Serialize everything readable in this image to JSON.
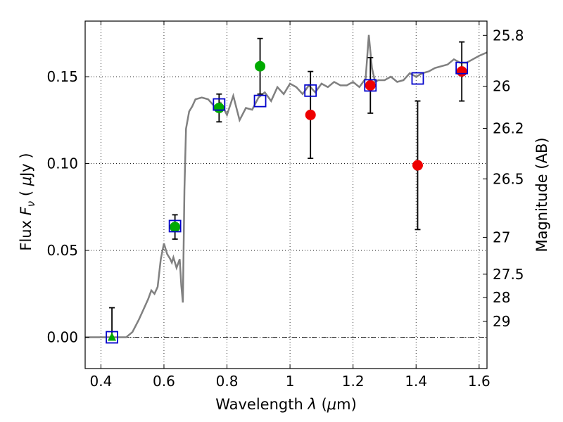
{
  "chart_data": {
    "type": "scatter",
    "xlabel": {
      "prefix": "Wavelength ",
      "symbol": "λ",
      "unit_open": " (",
      "unit_mu": "μ",
      "unit_rest": "m)"
    },
    "ylabel": {
      "prefix": "Flux ",
      "symbol": "F",
      "subscript": "ν",
      "unit_open": " ( ",
      "unit_mu": "μ",
      "unit_rest": "Jy )"
    },
    "y2label": "Magnitude (AB)",
    "xlim": [
      0.35,
      1.625
    ],
    "ylim": [
      -0.018,
      0.182
    ],
    "grid": true,
    "x_ticks": [
      {
        "value": 0.4,
        "label": "0.4"
      },
      {
        "value": 0.6,
        "label": "0.6"
      },
      {
        "value": 0.8,
        "label": "0.8"
      },
      {
        "value": 1.0,
        "label": "1"
      },
      {
        "value": 1.2,
        "label": "1.2"
      },
      {
        "value": 1.4,
        "label": "1.4"
      },
      {
        "value": 1.6,
        "label": "1.6"
      }
    ],
    "y_ticks": [
      {
        "value": 0.0,
        "label": "0.00"
      },
      {
        "value": 0.05,
        "label": "0.05"
      },
      {
        "value": 0.1,
        "label": "0.10"
      },
      {
        "value": 0.15,
        "label": "0.15"
      }
    ],
    "y2_ticks": [
      {
        "value": 25.8,
        "label": "25.8"
      },
      {
        "value": 26.0,
        "label": "26"
      },
      {
        "value": 26.2,
        "label": "26.2"
      },
      {
        "value": 26.5,
        "label": "26.5"
      },
      {
        "value": 27.0,
        "label": "27"
      },
      {
        "value": 27.5,
        "label": "27.5"
      },
      {
        "value": 28.0,
        "label": "28"
      },
      {
        "value": 29.0,
        "label": "29"
      }
    ],
    "model_spectrum": {
      "color": "#808080",
      "x": [
        0.35,
        0.48,
        0.5,
        0.52,
        0.53,
        0.54,
        0.55,
        0.56,
        0.57,
        0.58,
        0.59,
        0.6,
        0.61,
        0.62,
        0.625,
        0.63,
        0.64,
        0.65,
        0.655,
        0.66,
        0.665,
        0.67,
        0.68,
        0.69,
        0.7,
        0.72,
        0.74,
        0.76,
        0.78,
        0.8,
        0.82,
        0.84,
        0.86,
        0.88,
        0.9,
        0.92,
        0.94,
        0.96,
        0.98,
        1.0,
        1.02,
        1.04,
        1.06,
        1.08,
        1.1,
        1.12,
        1.14,
        1.16,
        1.18,
        1.2,
        1.22,
        1.24,
        1.25,
        1.26,
        1.27,
        1.28,
        1.3,
        1.32,
        1.34,
        1.36,
        1.38,
        1.4,
        1.42,
        1.44,
        1.46,
        1.48,
        1.5,
        1.52,
        1.54,
        1.56,
        1.58,
        1.6,
        1.625
      ],
      "y": [
        0.0,
        0.0,
        0.003,
        0.01,
        0.014,
        0.018,
        0.022,
        0.027,
        0.025,
        0.029,
        0.045,
        0.054,
        0.048,
        0.045,
        0.043,
        0.046,
        0.04,
        0.045,
        0.03,
        0.02,
        0.085,
        0.12,
        0.13,
        0.133,
        0.137,
        0.138,
        0.137,
        0.133,
        0.135,
        0.128,
        0.139,
        0.125,
        0.132,
        0.131,
        0.138,
        0.141,
        0.136,
        0.144,
        0.14,
        0.146,
        0.144,
        0.14,
        0.145,
        0.141,
        0.146,
        0.144,
        0.147,
        0.145,
        0.145,
        0.147,
        0.144,
        0.149,
        0.174,
        0.155,
        0.147,
        0.148,
        0.148,
        0.15,
        0.147,
        0.148,
        0.152,
        0.15,
        0.152,
        0.153,
        0.155,
        0.156,
        0.157,
        0.16,
        0.158,
        0.158,
        0.16,
        0.162,
        0.164
      ]
    },
    "model_photometry": {
      "color": "#0000cc",
      "x": [
        0.435,
        0.635,
        0.775,
        0.905,
        1.065,
        1.255,
        1.405,
        1.545
      ],
      "y": [
        0.0,
        0.064,
        0.134,
        0.136,
        0.142,
        0.145,
        0.149,
        0.155
      ]
    },
    "detections": [
      {
        "x": 0.775,
        "y": 0.132,
        "err": 0.008,
        "color": "#00aa00",
        "marker": "circle"
      },
      {
        "x": 0.905,
        "y": 0.156,
        "err": 0.016,
        "color": "#00aa00",
        "marker": "circle"
      },
      {
        "x": 0.635,
        "y": 0.0635,
        "err": 0.007,
        "color": "#00aa00",
        "marker": "circle"
      },
      {
        "x": 0.435,
        "y": 0.0,
        "err_up": 0.017,
        "err_down": 0.0,
        "color": "#00aa00",
        "marker": "triangle"
      },
      {
        "x": 1.065,
        "y": 0.128,
        "err": 0.025,
        "color": "#ee0000",
        "marker": "circle"
      },
      {
        "x": 1.255,
        "y": 0.145,
        "err": 0.016,
        "color": "#ee0000",
        "marker": "circle"
      },
      {
        "x": 1.405,
        "y": 0.099,
        "err": 0.037,
        "color": "#ee0000",
        "marker": "circle"
      },
      {
        "x": 1.545,
        "y": 0.153,
        "err": 0.017,
        "color": "#ee0000",
        "marker": "circle"
      }
    ]
  }
}
